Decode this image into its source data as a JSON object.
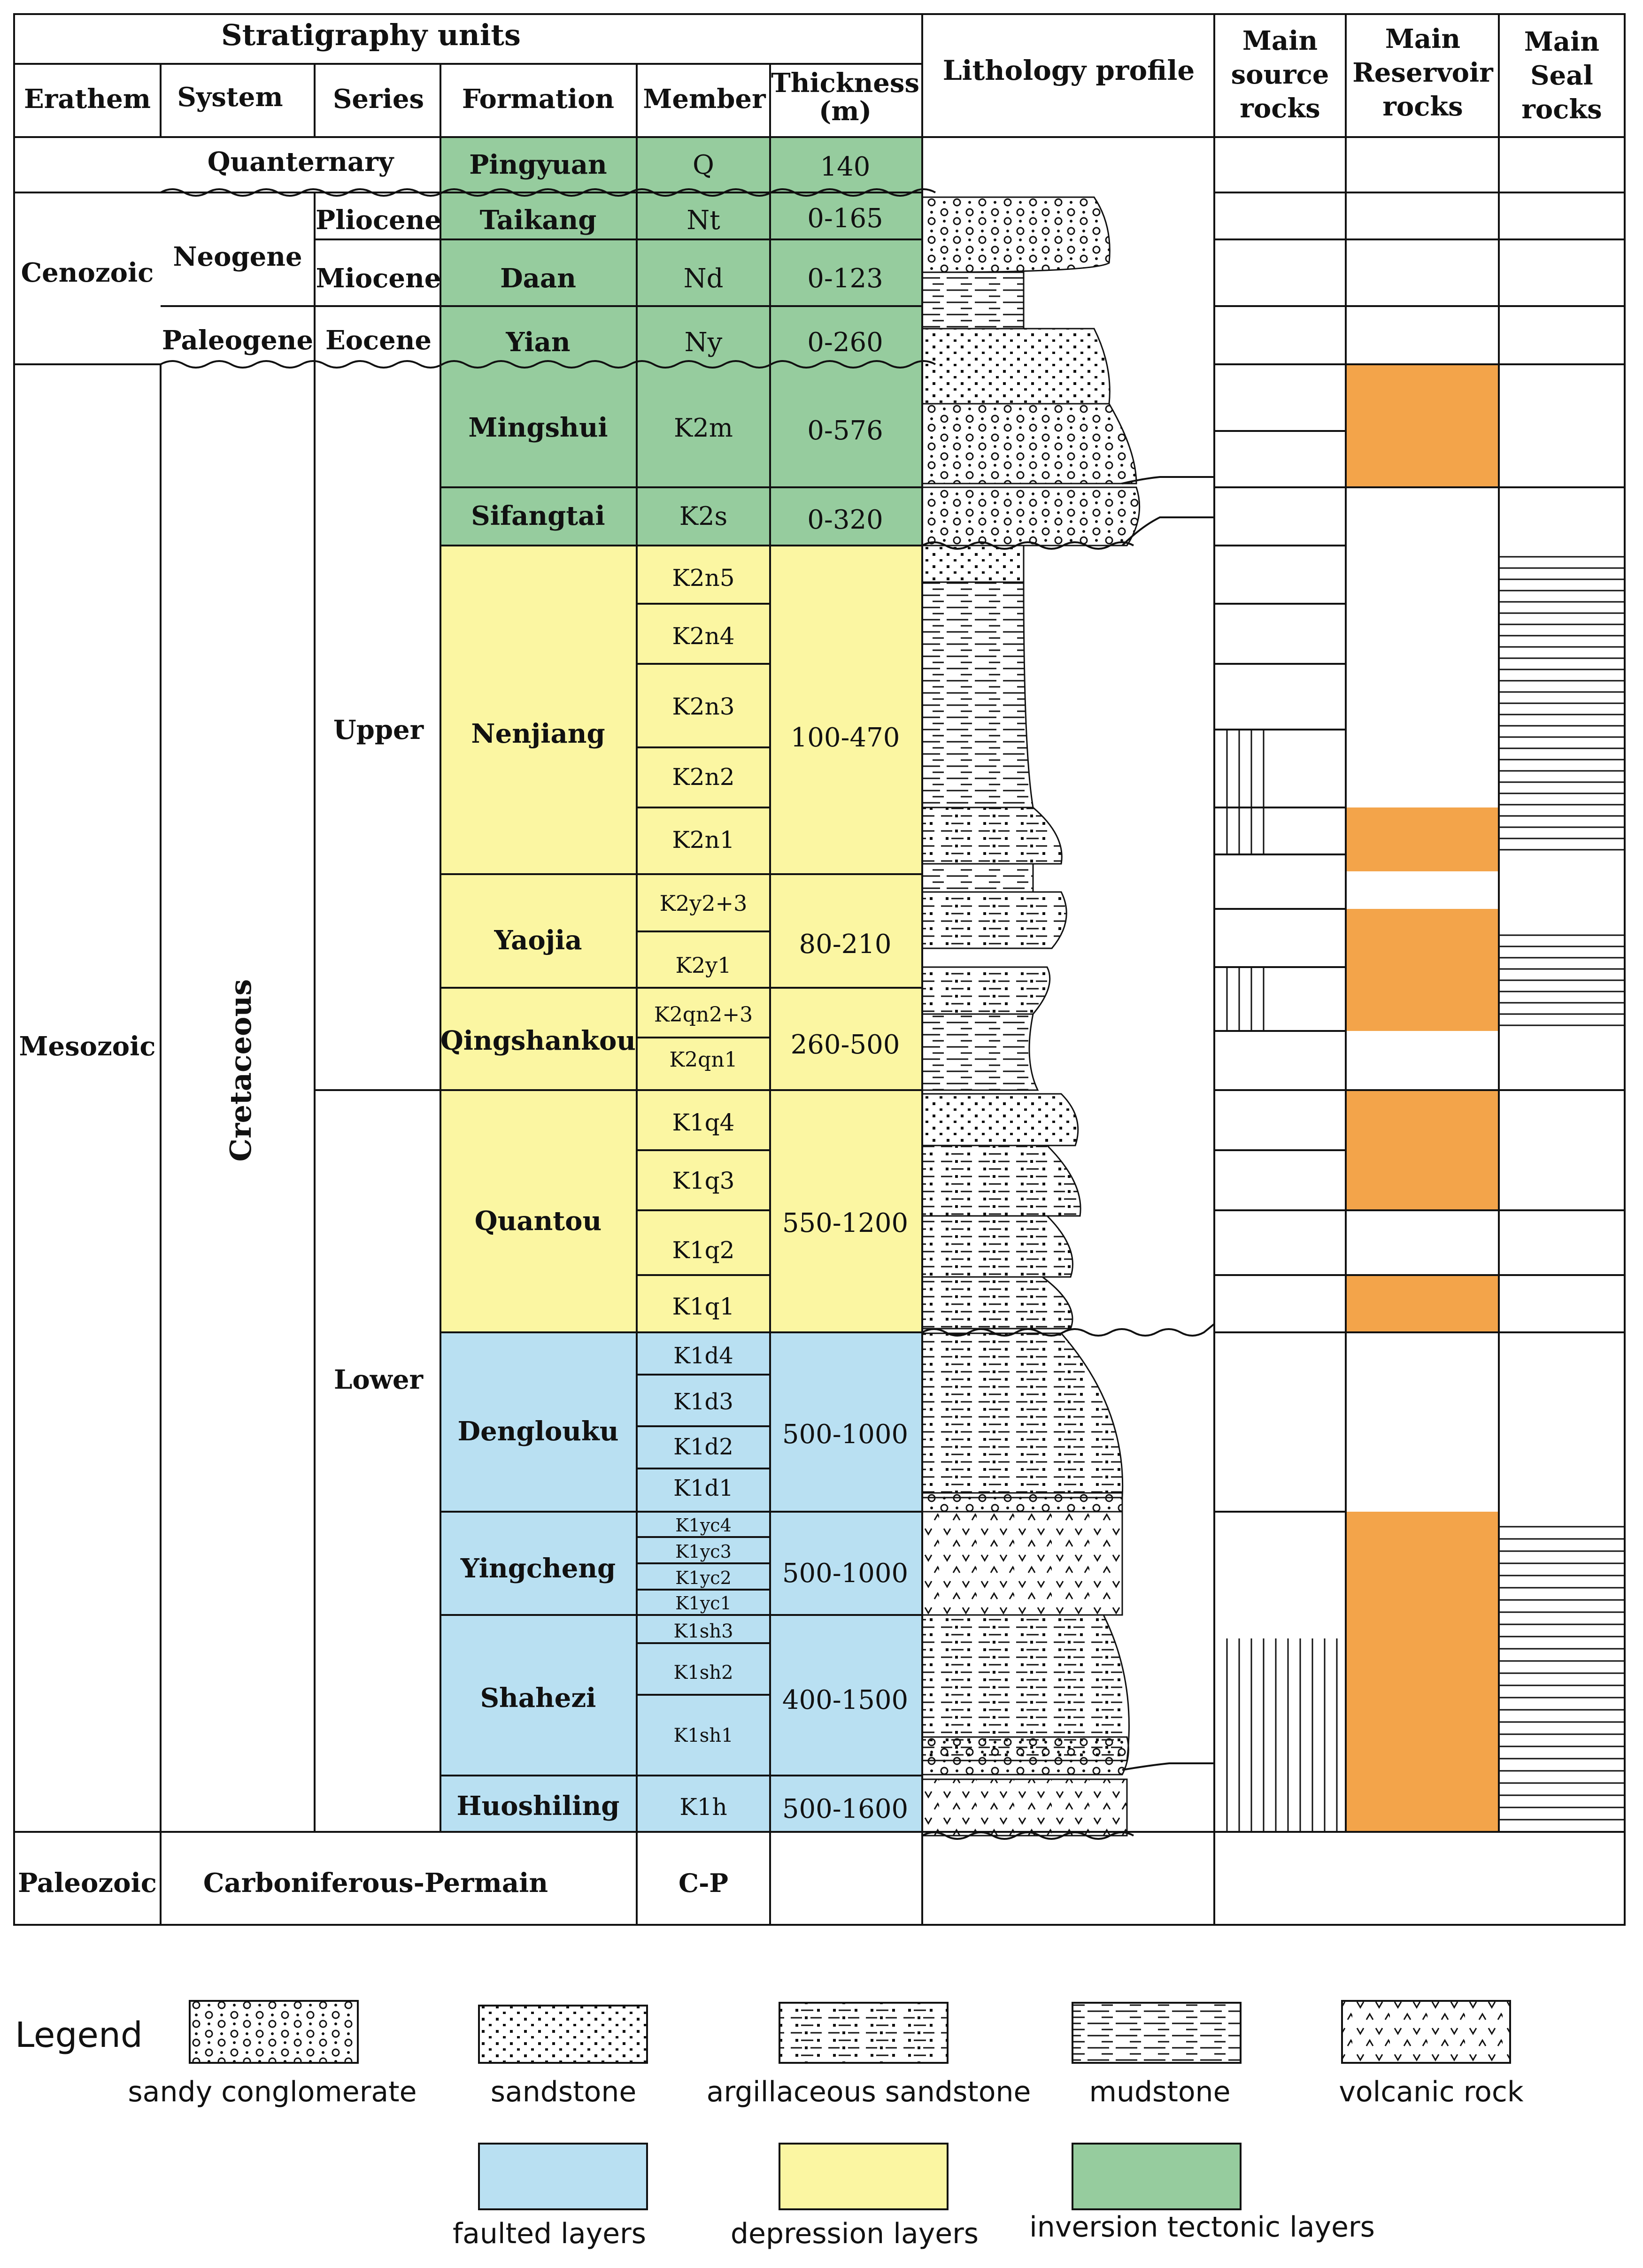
{
  "headers": {
    "stratigraphy": "Stratigraphy units",
    "erathem": "Erathem",
    "system": "System",
    "series": "Series",
    "formation": "Formation",
    "member": "Member",
    "thickness_line1": "Thickness",
    "thickness_line2": "(m)",
    "lithology": "Lithology profile",
    "source_line1": "Main",
    "source_line2": "source",
    "source_line3": "rocks",
    "reservoir_line1": "Main",
    "reservoir_line2": "Reservoir",
    "reservoir_line3": "rocks",
    "seal_line1": "Main",
    "seal_line2": "Seal",
    "seal_line3": "rocks"
  },
  "erathems": [
    "Cenozoic",
    "Mesozoic",
    "Paleozoic"
  ],
  "systems": [
    "Quanternary",
    "Neogene",
    "Paleogene",
    "Cretaceous",
    "Carboniferous-Permain"
  ],
  "series": [
    "Pliocene",
    "Miocene",
    "Eocene",
    "Upper",
    "Lower"
  ],
  "formations": [
    {
      "name": "Pingyuan",
      "member": "Q",
      "thickness": "140",
      "tectonic": "inversion"
    },
    {
      "name": "Taikang",
      "member": "Nt",
      "thickness": "0-165",
      "tectonic": "inversion"
    },
    {
      "name": "Daan",
      "member": "Nd",
      "thickness": "0-123",
      "tectonic": "inversion"
    },
    {
      "name": "Yian",
      "member": "Ny",
      "thickness": "0-260",
      "tectonic": "inversion"
    },
    {
      "name": "Mingshui",
      "member": "K2m",
      "thickness": "0-576",
      "tectonic": "inversion"
    },
    {
      "name": "Sifangtai",
      "member": "K2s",
      "thickness": "0-320",
      "tectonic": "inversion"
    },
    {
      "name": "Nenjiang",
      "members": [
        "K2n5",
        "K2n4",
        "K2n3",
        "K2n2",
        "K2n1"
      ],
      "thickness": "100-470",
      "tectonic": "depression"
    },
    {
      "name": "Yaojia",
      "members": [
        "K2y2+3",
        "K2y1"
      ],
      "thickness": "80-210",
      "tectonic": "depression"
    },
    {
      "name": "Qingshankou",
      "members": [
        "K2qn2+3",
        "K2qn1"
      ],
      "thickness": "260-500",
      "tectonic": "depression"
    },
    {
      "name": "Quantou",
      "members": [
        "K1q4",
        "K1q3",
        "K1q2",
        "K1q1"
      ],
      "thickness": "550-1200",
      "tectonic": "depression"
    },
    {
      "name": "Denglouku",
      "members": [
        "K1d4",
        "K1d3",
        "K1d2",
        "K1d1"
      ],
      "thickness": "500-1000",
      "tectonic": "faulted"
    },
    {
      "name": "Yingcheng",
      "members": [
        "K1yc4",
        "K1yc3",
        "K1yc2",
        "K1yc1"
      ],
      "thickness": "500-1000",
      "tectonic": "faulted"
    },
    {
      "name": "Shahezi",
      "members": [
        "K1sh3",
        "K1sh2",
        "K1sh1"
      ],
      "thickness": "400-1500",
      "tectonic": "faulted"
    },
    {
      "name": "Huoshiling",
      "member": "K1h",
      "thickness": "500-1600",
      "tectonic": "faulted"
    }
  ],
  "paleozoic_member": "C-P",
  "legend": {
    "title": "Legend",
    "items": [
      {
        "label": "sandy conglomerate"
      },
      {
        "label": "sandstone"
      },
      {
        "label": "argillaceous sandstone"
      },
      {
        "label": "mudstone"
      },
      {
        "label": "volcanic rock"
      },
      {
        "label": "faulted layers",
        "color": "#b9e0f2"
      },
      {
        "label": "depression layers",
        "color": "#fbf6a2"
      },
      {
        "label": "inversion tectonic layers",
        "color": "#96cc9e"
      }
    ]
  },
  "colors": {
    "inversion": "#96cc9e",
    "depression": "#fbf6a2",
    "faulted": "#b9e0f2",
    "reservoir": "#f3a44a"
  }
}
